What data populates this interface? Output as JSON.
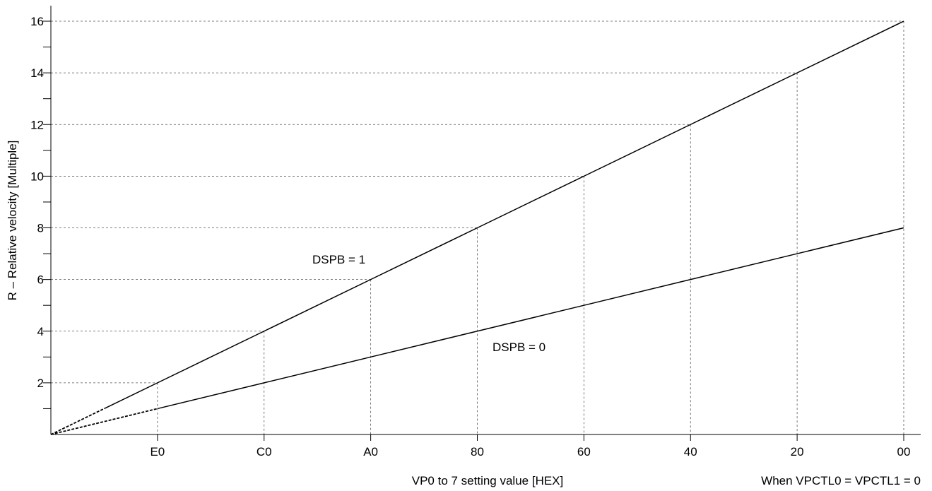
{
  "chart_data": {
    "type": "line",
    "xlabel": "VP0 to 7 setting value [HEX]",
    "ylabel": "R – Relative velocity [Multiple]",
    "note": "When VPCTL0 = VPCTL1 = 0",
    "x_ticks": [
      "E0",
      "C0",
      "A0",
      "80",
      "60",
      "40",
      "20",
      "00"
    ],
    "x_tick_steps": [
      1,
      2,
      3,
      4,
      5,
      6,
      7,
      8
    ],
    "y_ticks": [
      2,
      4,
      6,
      8,
      10,
      12,
      14,
      16
    ],
    "y_minor_ticks": [
      1,
      3,
      5,
      7,
      9,
      11,
      13,
      15
    ],
    "xlim": [
      0,
      8
    ],
    "ylim": [
      0,
      16
    ],
    "grid": "dashed reference lines to data points",
    "series": [
      {
        "name": "DSPB = 1",
        "points": [
          [
            0.5,
            1
          ],
          [
            1,
            2
          ],
          [
            2,
            4
          ],
          [
            3,
            6
          ],
          [
            4,
            8
          ],
          [
            5,
            10
          ],
          [
            6,
            12
          ],
          [
            7,
            14
          ],
          [
            8,
            16
          ]
        ],
        "extrapolation": [
          [
            0,
            0
          ],
          [
            0.5,
            1
          ]
        ]
      },
      {
        "name": "DSPB = 0",
        "points": [
          [
            1,
            1
          ],
          [
            2,
            2
          ],
          [
            3,
            3
          ],
          [
            4,
            4
          ],
          [
            5,
            5
          ],
          [
            6,
            6
          ],
          [
            7,
            7
          ],
          [
            8,
            8
          ]
        ],
        "extrapolation": [
          [
            0,
            0
          ],
          [
            1,
            1
          ]
        ]
      }
    ]
  }
}
